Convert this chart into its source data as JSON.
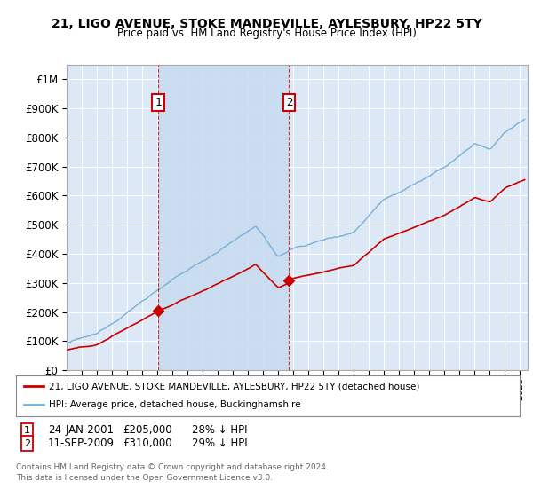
{
  "title": "21, LIGO AVENUE, STOKE MANDEVILLE, AYLESBURY, HP22 5TY",
  "subtitle": "Price paid vs. HM Land Registry's House Price Index (HPI)",
  "background_color": "#ffffff",
  "plot_bg_color": "#dce8f5",
  "grid_color": "#ffffff",
  "shade_color": "#c8dcf0",
  "sale1_date": 2001.07,
  "sale1_price": 205000,
  "sale2_date": 2009.72,
  "sale2_price": 310000,
  "legend_entry1": "21, LIGO AVENUE, STOKE MANDEVILLE, AYLESBURY, HP22 5TY (detached house)",
  "legend_entry2": "HPI: Average price, detached house, Buckinghamshire",
  "footer": "Contains HM Land Registry data © Crown copyright and database right 2024.\nThis data is licensed under the Open Government Licence v3.0.",
  "red_line_color": "#cc0000",
  "blue_line_color": "#7ab0d4",
  "ylim_max": 1050000,
  "xmin": 1995.0,
  "xmax": 2025.5,
  "yticks": [
    0,
    100000,
    200000,
    300000,
    400000,
    500000,
    600000,
    700000,
    800000,
    900000,
    1000000
  ]
}
